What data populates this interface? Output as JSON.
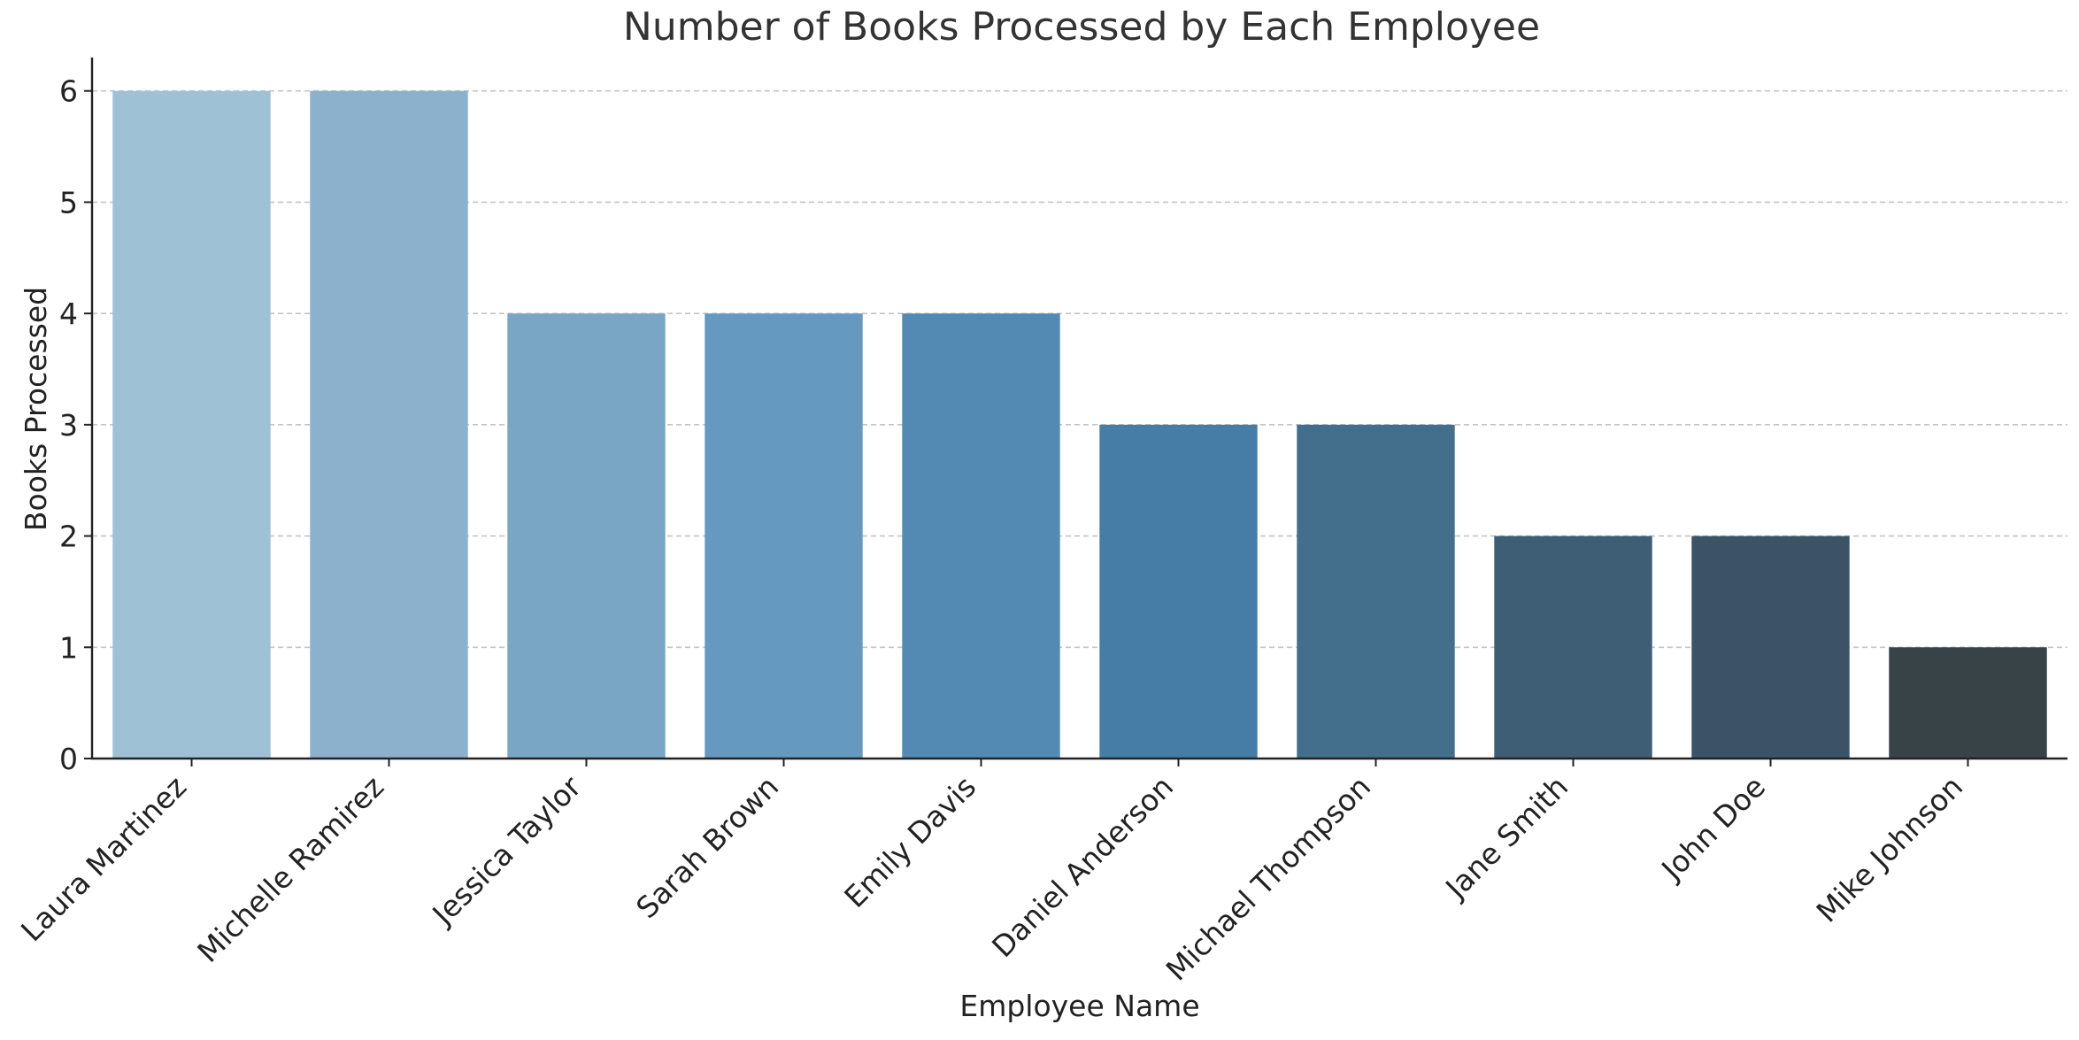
{
  "chart_data": {
    "type": "bar",
    "title": "Number of Books Processed by Each Employee",
    "xlabel": "Employee Name",
    "ylabel": "Books Processed",
    "categories": [
      "Laura Martinez",
      "Michelle Ramirez",
      "Jessica Taylor",
      "Sarah Brown",
      "Emily Davis",
      "Daniel Anderson",
      "Michael Thompson",
      "Jane Smith",
      "John Doe",
      "Mike Johnson"
    ],
    "values": [
      6,
      6,
      4,
      4,
      4,
      3,
      3,
      2,
      2,
      1
    ],
    "ylim": [
      0,
      6.3
    ],
    "yticks": [
      0,
      1,
      2,
      3,
      4,
      5,
      6
    ],
    "grid": "horizontal dashed",
    "colors": [
      "#9fc1d6",
      "#8bb1cc",
      "#79a6c5",
      "#6699bf",
      "#528ab4",
      "#467da6",
      "#436f8d",
      "#3e5e76",
      "#3c5367",
      "#384348"
    ],
    "axis_color": "#222222",
    "grid_color": "#c4c4c4",
    "text_color": "#333333"
  }
}
